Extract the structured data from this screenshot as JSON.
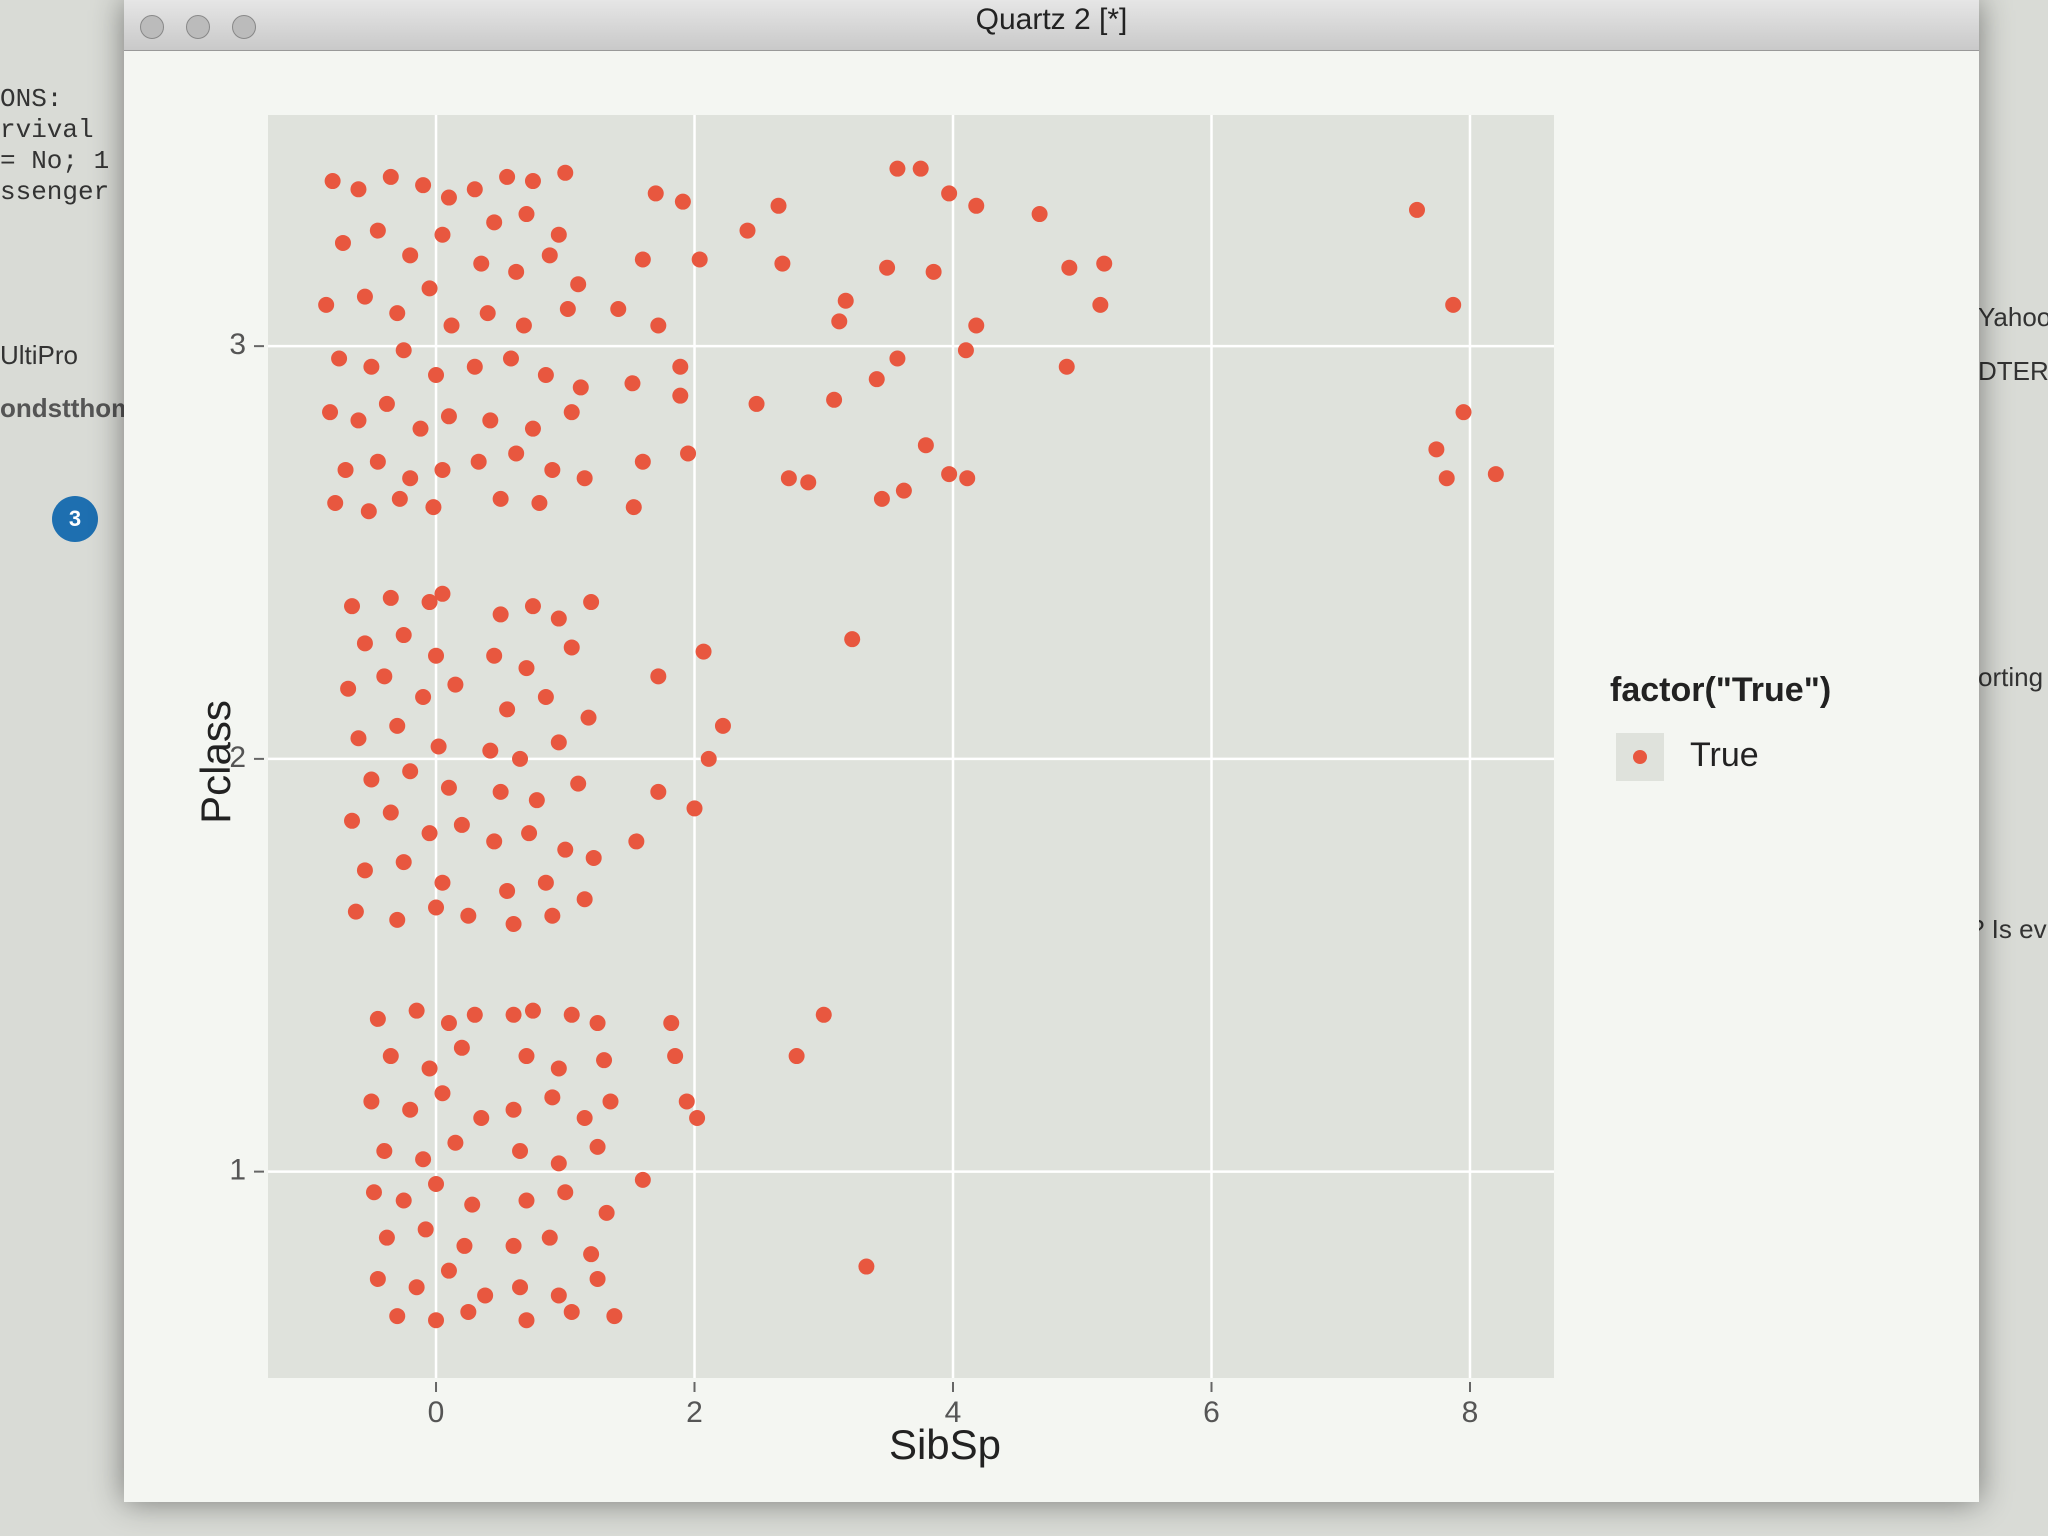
{
  "window_title": "Quartz 2 [*]",
  "background_texts": [
    "ONS:",
    "rvival",
    "= No; 1",
    "ssenger",
    "UltiPro",
    "ondstthom",
    "3",
    "Yahoo",
    "DTERN",
    "orting",
    "? Is ev"
  ],
  "chart_data": {
    "type": "scatter",
    "x_label": "SibSp",
    "y_label": "Pclass",
    "legend_title": "factor(\"True\")",
    "legend": "right",
    "grid": true,
    "panel_color": "#dfe2dc",
    "xlim": [
      -1.3,
      8.65
    ],
    "ylim": [
      0.5,
      3.56
    ],
    "xticks": [
      0,
      2,
      4,
      6,
      8
    ],
    "yticks": [
      1,
      2,
      3
    ],
    "x": [
      -0.8,
      -0.6,
      -0.35,
      -0.1,
      0.1,
      -0.72,
      -0.45,
      -0.2,
      0.05,
      -0.85,
      -0.55,
      -0.3,
      -0.05,
      0.12,
      -0.75,
      -0.5,
      -0.25,
      0.0,
      -0.82,
      -0.6,
      -0.38,
      -0.12,
      0.1,
      -0.7,
      -0.45,
      -0.2,
      0.05,
      -0.78,
      -0.52,
      -0.28,
      -0.02,
      0.3,
      0.55,
      0.75,
      1.0,
      0.45,
      0.7,
      0.95,
      0.35,
      0.62,
      0.88,
      1.1,
      0.4,
      0.68,
      1.02,
      0.3,
      0.58,
      0.85,
      1.12,
      0.42,
      0.75,
      1.05,
      0.33,
      0.62,
      0.9,
      1.15,
      0.5,
      0.8,
      3.57,
      3.75,
      3.97,
      4.18,
      4.67,
      7.59,
      7.87,
      7.95,
      7.74,
      8.2,
      7.82,
      4.9,
      5.17,
      5.14,
      4.88,
      2.65,
      2.41,
      2.68,
      2.48,
      3.08,
      3.17,
      3.12,
      3.49,
      3.85,
      4.18,
      4.1,
      3.57,
      3.41,
      3.79,
      3.97,
      4.11,
      3.62,
      3.45,
      2.73,
      2.88,
      1.7,
      1.91,
      2.04,
      1.6,
      1.52,
      1.89,
      1.95,
      1.6,
      1.53,
      1.89,
      1.72,
      1.41,
      -0.65,
      -0.35,
      -0.05,
      0.05,
      -0.55,
      -0.25,
      0.0,
      -0.68,
      -0.4,
      -0.1,
      0.15,
      -0.6,
      -0.3,
      0.02,
      -0.5,
      -0.2,
      0.1,
      -0.65,
      -0.35,
      -0.05,
      0.2,
      -0.55,
      -0.25,
      0.05,
      -0.62,
      -0.3,
      0.0,
      0.25,
      0.5,
      0.75,
      0.95,
      1.2,
      0.45,
      0.7,
      1.05,
      0.55,
      0.85,
      1.18,
      0.42,
      0.65,
      0.95,
      0.5,
      0.78,
      1.1,
      0.45,
      0.72,
      1.0,
      1.22,
      0.55,
      0.85,
      1.15,
      0.6,
      0.9,
      3.22,
      2.07,
      1.72,
      2.22,
      2.11,
      1.72,
      2.0,
      1.55,
      -0.45,
      -0.15,
      0.1,
      0.3,
      -0.35,
      -0.05,
      0.2,
      -0.5,
      -0.2,
      0.05,
      0.35,
      -0.4,
      -0.1,
      0.15,
      -0.48,
      -0.25,
      0.0,
      0.28,
      -0.38,
      -0.08,
      0.22,
      -0.45,
      -0.15,
      0.1,
      0.38,
      -0.3,
      0.0,
      0.25,
      0.6,
      0.75,
      1.05,
      1.25,
      0.7,
      0.95,
      1.3,
      0.6,
      0.9,
      1.15,
      1.35,
      0.65,
      0.95,
      1.25,
      0.7,
      1.0,
      1.32,
      0.6,
      0.88,
      1.2,
      0.65,
      0.95,
      1.25,
      0.7,
      1.05,
      1.38,
      3.0,
      1.82,
      1.85,
      2.79,
      1.94,
      2.02,
      1.6,
      3.33
    ],
    "series": [
      {
        "name": "True",
        "color": "#e8573f",
        "values": [
          3.4,
          3.38,
          3.41,
          3.39,
          3.36,
          3.25,
          3.28,
          3.22,
          3.27,
          3.1,
          3.12,
          3.08,
          3.14,
          3.05,
          2.97,
          2.95,
          2.99,
          2.93,
          2.84,
          2.82,
          2.86,
          2.8,
          2.83,
          2.7,
          2.72,
          2.68,
          2.7,
          2.62,
          2.6,
          2.63,
          2.61,
          3.38,
          3.41,
          3.4,
          3.42,
          3.3,
          3.32,
          3.27,
          3.2,
          3.18,
          3.22,
          3.15,
          3.08,
          3.05,
          3.09,
          2.95,
          2.97,
          2.93,
          2.9,
          2.82,
          2.8,
          2.84,
          2.72,
          2.74,
          2.7,
          2.68,
          2.63,
          2.62,
          3.43,
          3.43,
          3.37,
          3.34,
          3.32,
          3.33,
          3.1,
          2.84,
          2.75,
          2.69,
          2.68,
          3.19,
          3.2,
          3.1,
          2.95,
          3.34,
          3.28,
          3.2,
          2.86,
          2.87,
          3.11,
          3.06,
          3.19,
          3.18,
          3.05,
          2.99,
          2.97,
          2.92,
          2.76,
          2.69,
          2.68,
          2.65,
          2.63,
          2.68,
          2.67,
          3.37,
          3.35,
          3.21,
          3.21,
          2.91,
          2.88,
          2.74,
          2.72,
          2.61,
          2.95,
          3.05,
          3.09,
          2.37,
          2.39,
          2.38,
          2.4,
          2.28,
          2.3,
          2.25,
          2.17,
          2.2,
          2.15,
          2.18,
          2.05,
          2.08,
          2.03,
          1.95,
          1.97,
          1.93,
          1.85,
          1.87,
          1.82,
          1.84,
          1.73,
          1.75,
          1.7,
          1.63,
          1.61,
          1.64,
          1.62,
          2.35,
          2.37,
          2.34,
          2.38,
          2.25,
          2.22,
          2.27,
          2.12,
          2.15,
          2.1,
          2.02,
          2.0,
          2.04,
          1.92,
          1.9,
          1.94,
          1.8,
          1.82,
          1.78,
          1.76,
          1.68,
          1.7,
          1.66,
          1.6,
          1.62,
          2.29,
          2.26,
          2.2,
          2.08,
          2.0,
          1.92,
          1.88,
          1.8,
          1.37,
          1.39,
          1.36,
          1.38,
          1.28,
          1.25,
          1.3,
          1.17,
          1.15,
          1.19,
          1.13,
          1.05,
          1.03,
          1.07,
          0.95,
          0.93,
          0.97,
          0.92,
          0.84,
          0.86,
          0.82,
          0.74,
          0.72,
          0.76,
          0.7,
          0.65,
          0.64,
          0.66,
          1.38,
          1.39,
          1.38,
          1.36,
          1.28,
          1.25,
          1.27,
          1.15,
          1.18,
          1.13,
          1.17,
          1.05,
          1.02,
          1.06,
          0.93,
          0.95,
          0.9,
          0.82,
          0.84,
          0.8,
          0.72,
          0.7,
          0.74,
          0.64,
          0.66,
          0.65,
          1.38,
          1.36,
          1.28,
          1.28,
          1.17,
          1.13,
          0.98,
          0.77
        ]
      }
    ]
  }
}
